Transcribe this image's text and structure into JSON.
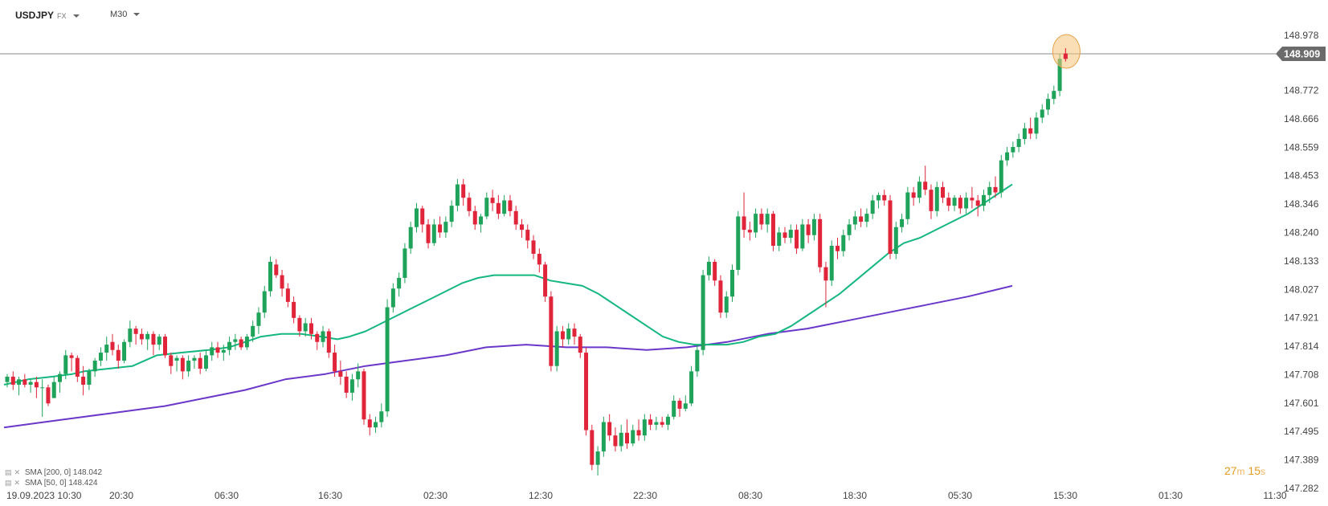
{
  "header": {
    "symbol": "USDJPY",
    "market": "FX",
    "timeframe": "M30"
  },
  "legend": [
    {
      "label": "SMA",
      "params": "[200, 0]",
      "value": "148.042"
    },
    {
      "label": "SMA",
      "params": "[50, 0]",
      "value": "148.424"
    }
  ],
  "timer": {
    "minutes": "27",
    "m_unit": "m",
    "seconds": "15",
    "s_unit": "s"
  },
  "colors": {
    "up": "#1fa35b",
    "down": "#e0243a",
    "sma50": "#15b77e",
    "sma200": "#6a37c9",
    "price_tag": "#6b6b6b",
    "highlight": "#f5c27a"
  },
  "chart_data": {
    "type": "candlestick",
    "y_ticks": [
      "148.978",
      "148.772",
      "148.666",
      "148.559",
      "148.453",
      "148.346",
      "148.240",
      "148.133",
      "148.027",
      "147.921",
      "147.814",
      "147.708",
      "147.601",
      "147.495",
      "147.389",
      "147.282"
    ],
    "x_ticks": [
      "19.09.2023 10:30",
      "20:30",
      "06:30",
      "16:30",
      "02:30",
      "12:30",
      "22:30",
      "08:30",
      "18:30",
      "05:30",
      "15:30",
      "01:30",
      "11:30"
    ],
    "current_price": "148.909",
    "ylim": [
      147.282,
      148.978
    ],
    "candles": [
      [
        147.68,
        147.71,
        147.66,
        147.7
      ],
      [
        147.7,
        147.72,
        147.65,
        147.67
      ],
      [
        147.67,
        147.7,
        147.63,
        147.69
      ],
      [
        147.69,
        147.71,
        147.66,
        147.67
      ],
      [
        147.67,
        147.69,
        147.64,
        147.68
      ],
      [
        147.68,
        147.7,
        147.62,
        147.66
      ],
      [
        147.66,
        147.69,
        147.55,
        147.66
      ],
      [
        147.66,
        147.67,
        147.59,
        147.6
      ],
      [
        147.62,
        147.7,
        147.62,
        147.68
      ],
      [
        147.68,
        147.72,
        147.64,
        147.71
      ],
      [
        147.71,
        147.8,
        147.69,
        147.78
      ],
      [
        147.78,
        147.79,
        147.72,
        147.77
      ],
      [
        147.77,
        147.78,
        147.68,
        147.7
      ],
      [
        147.7,
        147.74,
        147.63,
        147.67
      ],
      [
        147.67,
        147.73,
        147.65,
        147.72
      ],
      [
        147.72,
        147.77,
        147.7,
        147.76
      ],
      [
        147.76,
        147.81,
        147.74,
        147.79
      ],
      [
        147.79,
        147.85,
        147.76,
        147.82
      ],
      [
        147.83,
        147.86,
        147.78,
        147.8
      ],
      [
        147.8,
        147.82,
        147.73,
        147.76
      ],
      [
        147.76,
        147.84,
        147.75,
        147.83
      ],
      [
        147.83,
        147.91,
        147.81,
        147.88
      ],
      [
        147.88,
        147.89,
        147.82,
        147.86
      ],
      [
        147.86,
        147.88,
        147.82,
        147.84
      ],
      [
        147.84,
        147.87,
        147.8,
        147.86
      ],
      [
        147.86,
        147.87,
        147.78,
        147.82
      ],
      [
        147.82,
        147.86,
        147.8,
        147.85
      ],
      [
        147.85,
        147.86,
        147.77,
        147.78
      ],
      [
        147.78,
        147.79,
        147.71,
        147.74
      ],
      [
        147.76,
        147.78,
        147.72,
        147.77
      ],
      [
        147.77,
        147.78,
        147.69,
        147.72
      ],
      [
        147.72,
        147.78,
        147.7,
        147.76
      ],
      [
        147.76,
        147.78,
        147.73,
        147.77
      ],
      [
        147.77,
        147.79,
        147.71,
        147.73
      ],
      [
        147.73,
        147.8,
        147.72,
        147.78
      ],
      [
        147.78,
        147.83,
        147.76,
        147.81
      ],
      [
        147.81,
        147.83,
        147.77,
        147.79
      ],
      [
        147.79,
        147.82,
        147.76,
        147.8
      ],
      [
        147.8,
        147.85,
        147.78,
        147.83
      ],
      [
        147.83,
        147.86,
        147.8,
        147.84
      ],
      [
        147.84,
        147.85,
        147.8,
        147.81
      ],
      [
        147.81,
        147.86,
        147.8,
        147.85
      ],
      [
        147.85,
        147.91,
        147.83,
        147.89
      ],
      [
        147.89,
        147.96,
        147.86,
        147.94
      ],
      [
        147.94,
        148.04,
        147.92,
        148.02
      ],
      [
        148.02,
        148.15,
        148.0,
        148.13
      ],
      [
        148.12,
        148.14,
        148.07,
        148.08
      ],
      [
        148.08,
        148.1,
        148.0,
        148.03
      ],
      [
        148.03,
        148.05,
        147.96,
        147.98
      ],
      [
        147.98,
        148.0,
        147.9,
        147.92
      ],
      [
        147.92,
        147.93,
        147.85,
        147.87
      ],
      [
        147.87,
        147.92,
        147.85,
        147.9
      ],
      [
        147.9,
        147.92,
        147.84,
        147.86
      ],
      [
        147.86,
        147.87,
        147.8,
        147.83
      ],
      [
        147.83,
        147.89,
        147.81,
        147.87
      ],
      [
        147.87,
        147.88,
        147.77,
        147.79
      ],
      [
        147.79,
        147.82,
        147.7,
        147.72
      ],
      [
        147.72,
        147.76,
        147.67,
        147.7
      ],
      [
        147.7,
        147.72,
        147.62,
        147.64
      ],
      [
        147.64,
        147.71,
        147.61,
        147.69
      ],
      [
        147.69,
        147.75,
        147.66,
        147.72
      ],
      [
        147.72,
        147.73,
        147.52,
        147.54
      ],
      [
        147.54,
        147.56,
        147.48,
        147.51
      ],
      [
        147.51,
        147.55,
        147.49,
        147.53
      ],
      [
        147.53,
        147.6,
        147.51,
        147.57
      ],
      [
        147.57,
        147.99,
        147.55,
        147.96
      ],
      [
        147.96,
        148.05,
        147.94,
        148.03
      ],
      [
        148.03,
        148.09,
        148.0,
        148.07
      ],
      [
        148.07,
        148.2,
        148.05,
        148.18
      ],
      [
        148.18,
        148.28,
        148.16,
        148.26
      ],
      [
        148.26,
        148.35,
        148.24,
        148.33
      ],
      [
        148.33,
        148.34,
        148.24,
        148.27
      ],
      [
        148.27,
        148.29,
        148.18,
        148.2
      ],
      [
        148.2,
        148.29,
        148.19,
        148.27
      ],
      [
        148.27,
        148.3,
        148.22,
        148.24
      ],
      [
        148.24,
        148.3,
        148.22,
        148.28
      ],
      [
        148.28,
        148.36,
        148.26,
        148.34
      ],
      [
        148.34,
        148.44,
        148.32,
        148.42
      ],
      [
        148.42,
        148.44,
        148.34,
        148.37
      ],
      [
        148.37,
        148.39,
        148.3,
        148.32
      ],
      [
        148.32,
        148.34,
        148.25,
        148.27
      ],
      [
        148.27,
        148.31,
        148.24,
        148.3
      ],
      [
        148.3,
        148.39,
        148.29,
        148.37
      ],
      [
        148.37,
        148.4,
        148.32,
        148.35
      ],
      [
        148.35,
        148.38,
        148.29,
        148.31
      ],
      [
        148.31,
        148.38,
        148.3,
        148.36
      ],
      [
        148.36,
        148.38,
        148.3,
        148.32
      ],
      [
        148.32,
        148.34,
        148.25,
        148.27
      ],
      [
        148.27,
        148.29,
        148.22,
        148.25
      ],
      [
        148.25,
        148.27,
        148.18,
        148.21
      ],
      [
        148.21,
        148.23,
        148.14,
        148.16
      ],
      [
        148.16,
        148.18,
        148.09,
        148.12
      ],
      [
        148.12,
        148.13,
        147.98,
        148.0
      ],
      [
        148.0,
        148.02,
        147.72,
        147.74
      ],
      [
        147.74,
        147.89,
        147.72,
        147.87
      ],
      [
        147.87,
        147.89,
        147.81,
        147.84
      ],
      [
        147.84,
        147.9,
        147.82,
        147.88
      ],
      [
        147.88,
        147.9,
        147.82,
        147.85
      ],
      [
        147.85,
        147.86,
        147.77,
        147.79
      ],
      [
        147.79,
        147.81,
        147.48,
        147.5
      ],
      [
        147.5,
        147.52,
        147.35,
        147.37
      ],
      [
        147.37,
        147.44,
        147.33,
        147.42
      ],
      [
        147.42,
        147.55,
        147.4,
        147.53
      ],
      [
        147.53,
        147.56,
        147.46,
        147.48
      ],
      [
        147.48,
        147.51,
        147.42,
        147.44
      ],
      [
        147.44,
        147.52,
        147.42,
        147.49
      ],
      [
        147.49,
        147.54,
        147.43,
        147.45
      ],
      [
        147.45,
        147.52,
        147.44,
        147.5
      ],
      [
        147.5,
        147.54,
        147.46,
        147.48
      ],
      [
        147.48,
        147.56,
        147.46,
        147.54
      ],
      [
        147.54,
        147.56,
        147.5,
        147.52
      ],
      [
        147.52,
        147.55,
        147.5,
        147.53
      ],
      [
        147.53,
        147.55,
        147.51,
        147.52
      ],
      [
        147.52,
        147.56,
        147.5,
        147.55
      ],
      [
        147.55,
        147.63,
        147.54,
        147.61
      ],
      [
        147.61,
        147.62,
        147.55,
        147.58
      ],
      [
        147.58,
        147.63,
        147.57,
        147.6
      ],
      [
        147.6,
        147.74,
        147.59,
        147.72
      ],
      [
        147.72,
        147.82,
        147.7,
        147.8
      ],
      [
        147.8,
        148.1,
        147.78,
        148.08
      ],
      [
        148.08,
        148.15,
        148.06,
        148.13
      ],
      [
        148.13,
        148.14,
        148.04,
        148.06
      ],
      [
        148.06,
        148.08,
        147.92,
        147.94
      ],
      [
        147.94,
        148.02,
        147.92,
        148.0
      ],
      [
        148.0,
        148.12,
        147.98,
        148.1
      ],
      [
        148.1,
        148.32,
        148.08,
        148.3
      ],
      [
        148.3,
        148.39,
        148.22,
        148.25
      ],
      [
        148.25,
        148.28,
        148.21,
        148.24
      ],
      [
        148.24,
        148.33,
        148.22,
        148.31
      ],
      [
        148.31,
        148.33,
        148.25,
        148.27
      ],
      [
        148.27,
        148.33,
        148.24,
        148.31
      ],
      [
        148.31,
        148.32,
        148.17,
        148.19
      ],
      [
        148.19,
        148.26,
        148.17,
        148.24
      ],
      [
        148.24,
        148.26,
        148.2,
        148.22
      ],
      [
        148.22,
        148.27,
        148.2,
        148.25
      ],
      [
        148.25,
        148.27,
        148.16,
        148.18
      ],
      [
        148.18,
        148.29,
        148.17,
        148.27
      ],
      [
        148.27,
        148.29,
        148.2,
        148.23
      ],
      [
        148.23,
        148.31,
        148.21,
        148.29
      ],
      [
        148.29,
        148.31,
        148.09,
        148.11
      ],
      [
        148.11,
        148.13,
        147.96,
        148.06
      ],
      [
        148.06,
        148.21,
        148.04,
        148.19
      ],
      [
        148.19,
        148.22,
        148.14,
        148.17
      ],
      [
        148.17,
        148.25,
        148.15,
        148.23
      ],
      [
        148.23,
        148.29,
        148.21,
        148.27
      ],
      [
        148.27,
        148.32,
        148.25,
        148.3
      ],
      [
        148.3,
        148.33,
        148.26,
        148.28
      ],
      [
        148.28,
        148.33,
        148.26,
        148.31
      ],
      [
        148.31,
        148.38,
        148.29,
        148.36
      ],
      [
        148.36,
        148.39,
        148.33,
        148.38
      ],
      [
        148.38,
        148.4,
        148.34,
        148.36
      ],
      [
        148.36,
        148.38,
        148.14,
        148.16
      ],
      [
        148.16,
        148.28,
        148.14,
        148.26
      ],
      [
        148.26,
        148.31,
        148.24,
        148.29
      ],
      [
        148.29,
        148.41,
        148.27,
        148.39
      ],
      [
        148.39,
        148.41,
        148.34,
        148.37
      ],
      [
        148.37,
        148.45,
        148.35,
        148.43
      ],
      [
        148.43,
        148.49,
        148.38,
        148.4
      ],
      [
        148.4,
        148.42,
        148.29,
        148.32
      ],
      [
        148.32,
        148.43,
        148.3,
        148.41
      ],
      [
        148.41,
        148.43,
        148.35,
        148.37
      ],
      [
        148.37,
        148.39,
        148.32,
        148.34
      ],
      [
        148.34,
        148.38,
        148.32,
        148.37
      ],
      [
        148.37,
        148.38,
        148.31,
        148.33
      ],
      [
        148.33,
        148.39,
        148.31,
        148.37
      ],
      [
        148.37,
        148.41,
        148.33,
        148.36
      ],
      [
        148.36,
        148.38,
        148.3,
        148.34
      ],
      [
        148.34,
        148.4,
        148.32,
        148.38
      ],
      [
        148.38,
        148.43,
        148.35,
        148.41
      ],
      [
        148.41,
        148.45,
        148.37,
        148.39
      ],
      [
        148.39,
        148.53,
        148.37,
        148.51
      ],
      [
        148.51,
        148.56,
        148.49,
        148.54
      ],
      [
        148.54,
        148.58,
        148.52,
        148.56
      ],
      [
        148.56,
        148.61,
        148.54,
        148.59
      ],
      [
        148.59,
        148.65,
        148.57,
        148.63
      ],
      [
        148.63,
        148.67,
        148.59,
        148.61
      ],
      [
        148.61,
        148.69,
        148.59,
        148.67
      ],
      [
        148.67,
        148.72,
        148.65,
        148.7
      ],
      [
        148.7,
        148.76,
        148.68,
        148.74
      ],
      [
        148.74,
        148.79,
        148.72,
        148.77
      ],
      [
        148.77,
        148.91,
        148.75,
        148.89
      ],
      [
        148.91,
        148.93,
        148.88,
        148.89
      ]
    ],
    "sma50": [
      [
        0,
        147.67
      ],
      [
        30,
        147.69
      ],
      [
        60,
        147.7
      ],
      [
        85,
        147.71
      ],
      [
        100,
        147.72
      ],
      [
        130,
        147.73
      ],
      [
        160,
        147.74
      ],
      [
        190,
        147.78
      ],
      [
        220,
        147.79
      ],
      [
        255,
        147.8
      ],
      [
        280,
        147.81
      ],
      [
        300,
        147.83
      ],
      [
        320,
        147.85
      ],
      [
        345,
        147.86
      ],
      [
        370,
        147.86
      ],
      [
        395,
        147.85
      ],
      [
        415,
        147.84
      ],
      [
        430,
        147.85
      ],
      [
        450,
        147.87
      ],
      [
        470,
        147.9
      ],
      [
        490,
        147.93
      ],
      [
        510,
        147.96
      ],
      [
        530,
        147.99
      ],
      [
        550,
        148.02
      ],
      [
        570,
        148.05
      ],
      [
        590,
        148.07
      ],
      [
        610,
        148.08
      ],
      [
        640,
        148.08
      ],
      [
        660,
        148.08
      ],
      [
        680,
        148.06
      ],
      [
        700,
        148.05
      ],
      [
        720,
        148.04
      ],
      [
        740,
        148.01
      ],
      [
        760,
        147.97
      ],
      [
        780,
        147.93
      ],
      [
        800,
        147.89
      ],
      [
        820,
        147.85
      ],
      [
        840,
        147.83
      ],
      [
        860,
        147.82
      ],
      [
        880,
        147.82
      ],
      [
        900,
        147.82
      ],
      [
        920,
        147.83
      ],
      [
        940,
        147.85
      ],
      [
        960,
        147.86
      ],
      [
        980,
        147.89
      ],
      [
        1000,
        147.93
      ],
      [
        1020,
        147.97
      ],
      [
        1040,
        148.01
      ],
      [
        1060,
        148.06
      ],
      [
        1080,
        148.11
      ],
      [
        1100,
        148.16
      ],
      [
        1120,
        148.2
      ],
      [
        1140,
        148.22
      ],
      [
        1160,
        148.25
      ],
      [
        1180,
        148.28
      ],
      [
        1200,
        148.31
      ],
      [
        1220,
        148.35
      ],
      [
        1240,
        148.39
      ],
      [
        1255,
        148.42
      ]
    ],
    "sma200": [
      [
        0,
        147.51
      ],
      [
        50,
        147.53
      ],
      [
        100,
        147.55
      ],
      [
        150,
        147.57
      ],
      [
        200,
        147.59
      ],
      [
        250,
        147.62
      ],
      [
        300,
        147.65
      ],
      [
        350,
        147.69
      ],
      [
        400,
        147.71
      ],
      [
        450,
        147.74
      ],
      [
        500,
        147.76
      ],
      [
        550,
        147.78
      ],
      [
        600,
        147.81
      ],
      [
        650,
        147.82
      ],
      [
        700,
        147.81
      ],
      [
        750,
        147.81
      ],
      [
        800,
        147.8
      ],
      [
        850,
        147.81
      ],
      [
        900,
        147.83
      ],
      [
        950,
        147.86
      ],
      [
        1000,
        147.88
      ],
      [
        1050,
        147.91
      ],
      [
        1100,
        147.94
      ],
      [
        1150,
        147.97
      ],
      [
        1200,
        148.0
      ],
      [
        1255,
        148.04
      ]
    ]
  }
}
